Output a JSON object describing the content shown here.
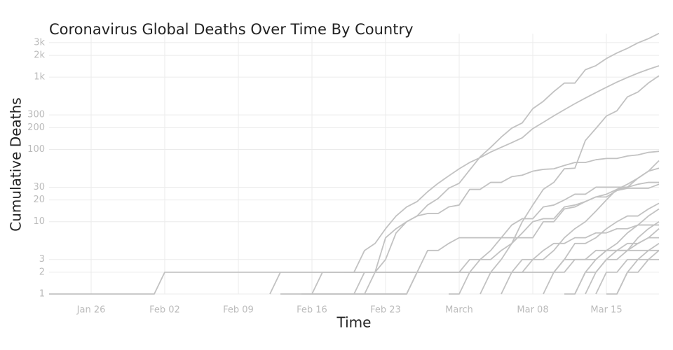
{
  "chart_data": {
    "type": "line",
    "title": "Coronavirus Global Deaths Over Time By Country",
    "x_label": "Time",
    "y_label": "Cumulative Deaths",
    "log_y": true,
    "grid": true,
    "color": "#c2c2c2",
    "x": [
      "Jan 22",
      "Jan 23",
      "Jan 24",
      "Jan 25",
      "Jan 26",
      "Jan 27",
      "Jan 28",
      "Jan 29",
      "Jan 30",
      "Jan 31",
      "Feb 01",
      "Feb 02",
      "Feb 03",
      "Feb 04",
      "Feb 05",
      "Feb 06",
      "Feb 07",
      "Feb 08",
      "Feb 09",
      "Feb 10",
      "Feb 11",
      "Feb 12",
      "Feb 13",
      "Feb 14",
      "Feb 15",
      "Feb 16",
      "Feb 17",
      "Feb 18",
      "Feb 19",
      "Feb 20",
      "Feb 21",
      "Feb 22",
      "Feb 23",
      "Feb 24",
      "Feb 25",
      "Feb 26",
      "Feb 27",
      "Feb 28",
      "Feb 29",
      "Mar 01",
      "Mar 02",
      "Mar 03",
      "Mar 04",
      "Mar 05",
      "Mar 06",
      "Mar 07",
      "Mar 08",
      "Mar 09",
      "Mar 10",
      "Mar 11",
      "Mar 12",
      "Mar 13",
      "Mar 14",
      "Mar 15",
      "Mar 16",
      "Mar 17",
      "Mar 18",
      "Mar 19",
      "Mar 20"
    ],
    "xticks": [
      "Jan 26",
      "Feb 02",
      "Feb 09",
      "Feb 16",
      "Feb 23",
      {
        "value": "Mar 01",
        "label": "March"
      },
      "Mar 08",
      "Mar 15"
    ],
    "ylim": [
      1,
      4000
    ],
    "yticks": [
      1,
      2,
      3,
      10,
      20,
      30,
      100,
      200,
      300,
      {
        "value": 1000,
        "label": "1k"
      },
      {
        "value": 2000,
        "label": "2k"
      },
      {
        "value": 3000,
        "label": "3k"
      }
    ],
    "series": [
      {
        "values": [
          null,
          null,
          null,
          null,
          null,
          null,
          null,
          null,
          null,
          null,
          null,
          null,
          null,
          null,
          null,
          null,
          null,
          null,
          null,
          null,
          null,
          null,
          null,
          null,
          null,
          null,
          null,
          null,
          null,
          null,
          1,
          2,
          3,
          7,
          10,
          12,
          17,
          21,
          29,
          34,
          52,
          79,
          107,
          148,
          197,
          233,
          366,
          463,
          631,
          827,
          827,
          1266,
          1441,
          1809,
          2158,
          2503,
          2978,
          3405,
          4032
        ]
      },
      {
        "values": [
          null,
          null,
          null,
          null,
          null,
          null,
          null,
          null,
          null,
          null,
          null,
          null,
          null,
          null,
          null,
          null,
          null,
          null,
          null,
          null,
          null,
          null,
          null,
          null,
          null,
          null,
          null,
          null,
          2,
          2,
          4,
          5,
          8,
          12,
          16,
          19,
          26,
          34,
          43,
          54,
          66,
          77,
          92,
          107,
          124,
          145,
          194,
          237,
          291,
          354,
          429,
          514,
          611,
          724,
          853,
          988,
          1135,
          1284,
          1433
        ]
      },
      {
        "values": [
          null,
          null,
          null,
          null,
          null,
          null,
          null,
          null,
          null,
          null,
          null,
          null,
          null,
          null,
          null,
          null,
          null,
          null,
          null,
          null,
          null,
          null,
          null,
          null,
          null,
          null,
          null,
          null,
          null,
          null,
          null,
          null,
          null,
          null,
          null,
          null,
          null,
          null,
          null,
          null,
          null,
          1,
          2,
          3,
          5,
          10,
          17,
          28,
          35,
          54,
          55,
          133,
          195,
          289,
          342,
          533,
          623,
          830,
          1043
        ]
      },
      {
        "values": [
          null,
          null,
          null,
          null,
          null,
          null,
          null,
          null,
          null,
          null,
          null,
          null,
          null,
          null,
          null,
          null,
          null,
          null,
          null,
          null,
          null,
          null,
          null,
          null,
          null,
          null,
          null,
          null,
          null,
          1,
          2,
          2,
          6,
          8,
          10,
          12,
          13,
          13,
          16,
          17,
          28,
          28,
          35,
          35,
          42,
          44,
          50,
          53,
          54,
          60,
          66,
          66,
          72,
          75,
          75,
          81,
          84,
          91,
          94
        ]
      },
      {
        "values": [
          null,
          null,
          null,
          null,
          null,
          null,
          null,
          null,
          null,
          null,
          null,
          null,
          null,
          null,
          null,
          null,
          null,
          null,
          null,
          null,
          null,
          null,
          1,
          1,
          1,
          1,
          1,
          1,
          1,
          1,
          1,
          1,
          1,
          1,
          1,
          2,
          4,
          4,
          5,
          6,
          6,
          6,
          6,
          6,
          6,
          6,
          6,
          10,
          10,
          15,
          16,
          19,
          22,
          22,
          27,
          29,
          29,
          29,
          33
        ]
      },
      {
        "values": [
          1,
          1,
          1,
          1,
          1,
          1,
          1,
          1,
          1,
          1,
          1,
          2,
          2,
          2,
          2,
          2,
          2,
          2,
          2,
          2,
          2,
          2,
          2,
          2,
          2,
          2,
          2,
          2,
          2,
          2,
          2,
          2,
          2,
          2,
          2,
          2,
          2,
          2,
          2,
          2,
          2,
          2,
          2,
          2,
          2,
          2,
          2,
          2,
          2,
          3,
          3,
          3,
          4,
          4,
          4,
          4,
          4,
          4,
          4
        ]
      },
      {
        "values": [
          null,
          null,
          null,
          null,
          null,
          null,
          null,
          null,
          null,
          null,
          null,
          null,
          null,
          null,
          null,
          null,
          null,
          null,
          null,
          null,
          null,
          null,
          null,
          null,
          1,
          1,
          1,
          1,
          1,
          1,
          1,
          1,
          1,
          1,
          1,
          2,
          2,
          2,
          2,
          2,
          3,
          3,
          4,
          6,
          9,
          11,
          11,
          16,
          17,
          20,
          24,
          24,
          30,
          30,
          30,
          30,
          33,
          35,
          35
        ]
      },
      {
        "values": [
          null,
          null,
          null,
          null,
          null,
          null,
          null,
          null,
          null,
          null,
          null,
          null,
          null,
          null,
          null,
          null,
          null,
          null,
          null,
          null,
          null,
          null,
          null,
          null,
          null,
          null,
          null,
          null,
          null,
          null,
          null,
          null,
          null,
          null,
          null,
          null,
          null,
          null,
          1,
          1,
          2,
          3,
          3,
          4,
          5,
          7,
          10,
          11,
          11,
          16,
          17,
          19,
          22,
          24,
          28,
          33,
          40,
          50,
          70
        ]
      },
      {
        "values": [
          null,
          null,
          null,
          null,
          null,
          null,
          null,
          null,
          null,
          null,
          null,
          null,
          null,
          null,
          null,
          null,
          null,
          null,
          null,
          null,
          null,
          null,
          null,
          null,
          null,
          null,
          null,
          null,
          null,
          null,
          null,
          null,
          null,
          null,
          null,
          null,
          null,
          null,
          null,
          null,
          null,
          null,
          null,
          1,
          2,
          2,
          3,
          3,
          4,
          6,
          8,
          10,
          14,
          20,
          28,
          30,
          40,
          50,
          55
        ]
      },
      {
        "values": [
          null,
          null,
          null,
          null,
          null,
          null,
          null,
          null,
          null,
          null,
          null,
          null,
          null,
          null,
          null,
          null,
          null,
          null,
          null,
          null,
          null,
          null,
          null,
          null,
          null,
          null,
          null,
          null,
          null,
          null,
          null,
          null,
          null,
          null,
          null,
          null,
          null,
          null,
          null,
          null,
          null,
          null,
          null,
          null,
          null,
          null,
          null,
          1,
          2,
          3,
          5,
          5,
          6,
          8,
          10,
          12,
          12,
          15,
          18
        ]
      },
      {
        "values": [
          null,
          null,
          null,
          null,
          null,
          null,
          null,
          null,
          null,
          null,
          null,
          null,
          null,
          null,
          null,
          null,
          null,
          null,
          null,
          null,
          null,
          null,
          null,
          null,
          null,
          null,
          null,
          null,
          null,
          null,
          null,
          null,
          null,
          null,
          null,
          null,
          null,
          null,
          null,
          null,
          null,
          null,
          null,
          null,
          null,
          null,
          null,
          null,
          null,
          1,
          1,
          2,
          3,
          4,
          5,
          7,
          9,
          12,
          15
        ]
      },
      {
        "values": [
          null,
          null,
          null,
          null,
          null,
          null,
          null,
          null,
          null,
          null,
          null,
          null,
          null,
          null,
          null,
          null,
          null,
          null,
          null,
          null,
          null,
          null,
          null,
          null,
          null,
          null,
          null,
          null,
          null,
          null,
          null,
          null,
          null,
          null,
          null,
          null,
          null,
          null,
          null,
          null,
          null,
          null,
          null,
          null,
          null,
          null,
          null,
          null,
          null,
          null,
          1,
          2,
          2,
          3,
          4,
          4,
          6,
          8,
          10
        ]
      },
      {
        "values": [
          null,
          null,
          null,
          null,
          null,
          null,
          null,
          null,
          null,
          null,
          null,
          null,
          null,
          null,
          null,
          null,
          null,
          null,
          null,
          null,
          null,
          null,
          null,
          null,
          null,
          null,
          null,
          null,
          null,
          null,
          null,
          null,
          null,
          null,
          null,
          null,
          null,
          null,
          null,
          null,
          null,
          null,
          null,
          null,
          null,
          null,
          null,
          null,
          null,
          null,
          null,
          1,
          2,
          3,
          3,
          4,
          5,
          6,
          8
        ]
      },
      {
        "values": [
          null,
          null,
          null,
          null,
          null,
          null,
          null,
          null,
          null,
          null,
          null,
          null,
          null,
          null,
          null,
          null,
          null,
          null,
          null,
          null,
          null,
          null,
          null,
          null,
          null,
          null,
          null,
          null,
          null,
          null,
          null,
          null,
          null,
          null,
          null,
          null,
          null,
          null,
          null,
          null,
          null,
          null,
          null,
          null,
          null,
          null,
          null,
          null,
          null,
          null,
          null,
          null,
          1,
          2,
          2,
          3,
          3,
          4,
          5
        ]
      },
      {
        "values": [
          null,
          null,
          null,
          null,
          null,
          null,
          null,
          null,
          null,
          null,
          null,
          null,
          null,
          null,
          null,
          null,
          null,
          null,
          null,
          null,
          null,
          null,
          null,
          null,
          null,
          null,
          null,
          null,
          null,
          null,
          null,
          null,
          null,
          null,
          null,
          null,
          null,
          null,
          null,
          null,
          null,
          null,
          null,
          null,
          null,
          null,
          null,
          null,
          null,
          null,
          null,
          null,
          null,
          1,
          1,
          2,
          2,
          3,
          3
        ]
      },
      {
        "values": [
          null,
          null,
          null,
          null,
          null,
          null,
          null,
          null,
          null,
          null,
          null,
          null,
          null,
          null,
          null,
          null,
          null,
          null,
          null,
          null,
          null,
          null,
          null,
          null,
          null,
          null,
          null,
          null,
          null,
          null,
          null,
          null,
          null,
          null,
          null,
          null,
          null,
          null,
          null,
          null,
          null,
          null,
          null,
          null,
          null,
          null,
          null,
          null,
          null,
          null,
          null,
          null,
          null,
          null,
          1,
          2,
          3,
          3,
          4
        ]
      },
      {
        "values": [
          null,
          null,
          null,
          null,
          null,
          null,
          null,
          null,
          null,
          null,
          null,
          null,
          null,
          null,
          null,
          null,
          null,
          null,
          null,
          null,
          null,
          1,
          2,
          2,
          2,
          2,
          2,
          2,
          2,
          2,
          2,
          2,
          2,
          2,
          2,
          2,
          2,
          2,
          2,
          2,
          2,
          2,
          2,
          2,
          2,
          2,
          2,
          2,
          2,
          2,
          3,
          3,
          3,
          4,
          4,
          5,
          5,
          6,
          6
        ]
      },
      {
        "values": [
          null,
          null,
          null,
          null,
          null,
          null,
          null,
          null,
          null,
          null,
          null,
          null,
          null,
          null,
          null,
          null,
          null,
          null,
          null,
          null,
          null,
          null,
          null,
          null,
          null,
          1,
          2,
          2,
          2,
          2,
          2,
          2,
          2,
          2,
          2,
          2,
          2,
          2,
          2,
          2,
          2,
          2,
          2,
          2,
          2,
          3,
          3,
          4,
          5,
          5,
          6,
          6,
          7,
          7,
          8,
          8,
          9,
          9,
          9
        ]
      }
    ]
  }
}
